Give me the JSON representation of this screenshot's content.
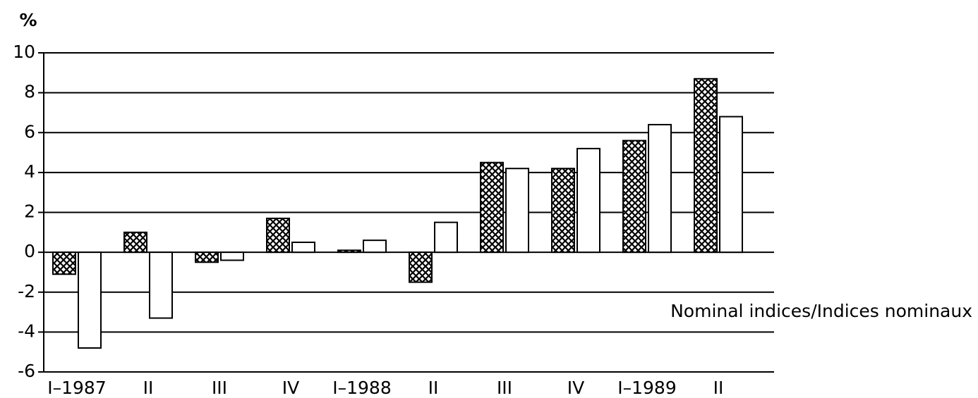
{
  "chart_data": {
    "type": "bar",
    "y_label": "%",
    "annotation": "Nominal indices/Indices nominaux",
    "categories": [
      "I–1987",
      "II",
      "III",
      "IV",
      "I–1988",
      "II",
      "III",
      "IV",
      "I–1989",
      "II"
    ],
    "series": [
      {
        "color": "#000000",
        "pattern": "crosshatch",
        "values": [
          -1.1,
          1.0,
          -0.5,
          1.7,
          0.1,
          -1.5,
          4.5,
          4.2,
          5.6,
          8.7
        ]
      },
      {
        "color": "#ffffff",
        "values": [
          -4.8,
          -3.3,
          -0.4,
          0.5,
          0.6,
          1.5,
          4.2,
          5.2,
          6.4,
          6.8
        ]
      }
    ],
    "ylim": [
      -6,
      10
    ],
    "yticks": [
      -6,
      -4,
      -2,
      0,
      2,
      4,
      6,
      8,
      10
    ],
    "grid": true
  }
}
